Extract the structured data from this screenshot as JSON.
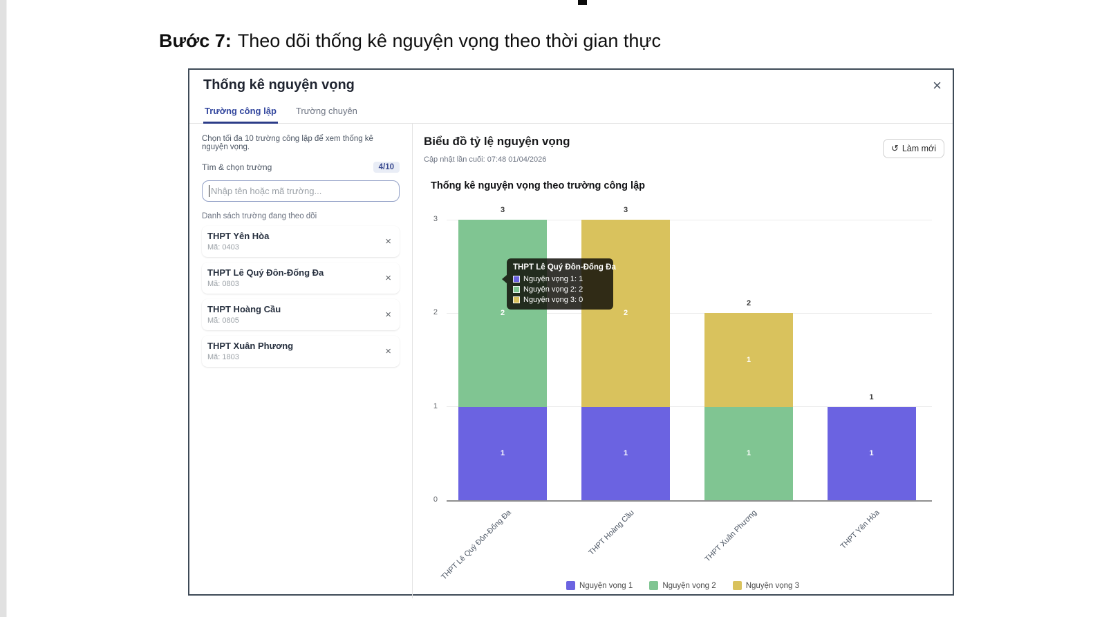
{
  "page": {
    "heading_step": "Bước 7:",
    "heading_text": "Theo dõi thống kê nguyện vọng theo thời gian thực"
  },
  "modal": {
    "title": "Thống kê nguyện vọng",
    "close_symbol": "×",
    "tabs": [
      {
        "label": "Trường công lập",
        "active": true
      },
      {
        "label": "Trường chuyên",
        "active": false
      }
    ]
  },
  "sidebar": {
    "instruction": "Chọn tối đa 10 trường công lập để xem thống kê nguyện vọng.",
    "search_label": "Tìm & chọn trường",
    "counter_badge": "4/10",
    "search_placeholder": "Nhập tên hoặc mã trường...",
    "list_label": "Danh sách trường đang theo dõi",
    "remove_symbol": "×",
    "schools": [
      {
        "name": "THPT Yên Hòa",
        "code": "Mã: 0403"
      },
      {
        "name": "THPT Lê Quý Đôn-Đống Đa",
        "code": "Mã: 0803"
      },
      {
        "name": "THPT Hoàng Cầu",
        "code": "Mã: 0805"
      },
      {
        "name": "THPT Xuân Phương",
        "code": "Mã: 1803"
      }
    ]
  },
  "panel": {
    "title": "Biểu đồ tỷ lệ nguyện vọng",
    "updated": "Cập nhật lần cuối: 07:48 01/04/2026",
    "refresh_label": "Làm mới",
    "refresh_icon": "↺"
  },
  "chart_data": {
    "type": "bar",
    "stacked": true,
    "title": "Thống kê nguyện vọng theo trường công lập",
    "categories": [
      "THPT Lê Quý Đôn-Đống Đa",
      "THPT Hoàng Cầu",
      "THPT Xuân Phương",
      "THPT Yên Hòa"
    ],
    "series": [
      {
        "name": "Nguyện vọng 1",
        "color": "#6b63e1",
        "values": [
          1,
          1,
          0,
          1
        ]
      },
      {
        "name": "Nguyện vọng 2",
        "color": "#80c592",
        "values": [
          2,
          0,
          1,
          0
        ]
      },
      {
        "name": "Nguyện vọng 3",
        "color": "#d9c25d",
        "values": [
          0,
          2,
          1,
          0
        ]
      }
    ],
    "totals": [
      3,
      3,
      2,
      1
    ],
    "ylim": [
      0,
      3
    ],
    "yticks": [
      0,
      1,
      2,
      3
    ],
    "grid": true,
    "legend_position": "bottom",
    "tooltip": {
      "title": "THPT Lê Quý Đôn-Đống Đa",
      "rows": [
        {
          "label": "Nguyện vọng 1",
          "value": "1",
          "color": "#6b63e1"
        },
        {
          "label": "Nguyện vọng 2",
          "value": "2",
          "color": "#80c592"
        },
        {
          "label": "Nguyện vọng 3",
          "value": "0",
          "color": "#d9c25d"
        }
      ]
    }
  }
}
